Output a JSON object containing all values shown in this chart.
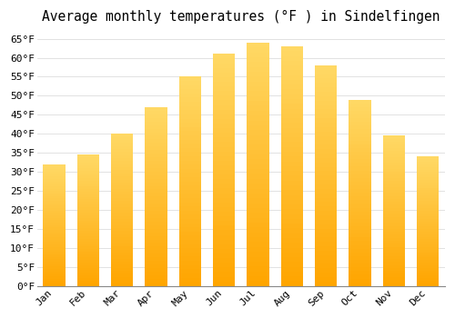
{
  "title": "Average monthly temperatures (°F ) in Sindelfingen",
  "months": [
    "Jan",
    "Feb",
    "Mar",
    "Apr",
    "May",
    "Jun",
    "Jul",
    "Aug",
    "Sep",
    "Oct",
    "Nov",
    "Dec"
  ],
  "values": [
    32,
    34.5,
    40,
    47,
    55,
    61,
    64,
    63,
    58,
    49,
    39.5,
    34
  ],
  "bar_color_bottom": "#FFA500",
  "bar_color_top": "#FFD966",
  "background_color": "#FFFFFF",
  "grid_color": "#DDDDDD",
  "ylim": [
    0,
    67
  ],
  "yticks": [
    0,
    5,
    10,
    15,
    20,
    25,
    30,
    35,
    40,
    45,
    50,
    55,
    60,
    65
  ],
  "title_fontsize": 10.5,
  "tick_fontsize": 8,
  "bar_width": 0.65
}
